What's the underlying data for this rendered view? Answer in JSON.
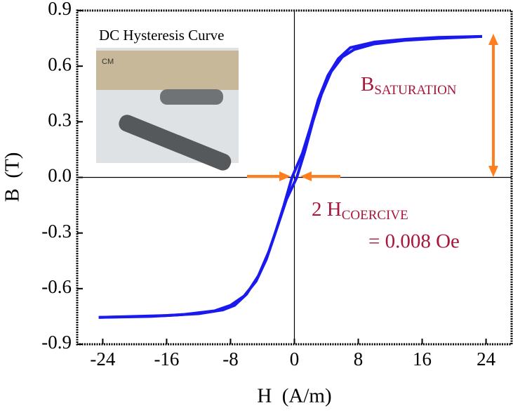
{
  "chart_data": {
    "type": "line",
    "xlabel": "H  (A/m)",
    "ylabel": "B  (T)",
    "xlim": [
      -27.2,
      27.2
    ],
    "ylim": [
      -0.9,
      0.9
    ],
    "xticks": [
      -24,
      -16,
      -8,
      0,
      8,
      16,
      24
    ],
    "yticks": [
      -0.9,
      -0.6,
      -0.3,
      {
        "value": 0,
        "label": "0.0"
      },
      0.3,
      0.6,
      0.9
    ],
    "series": [
      {
        "color": "#1a1aee",
        "x": [
          -24.5,
          -20,
          -16,
          -12,
          -9,
          -7.5,
          -6,
          -4.5,
          -3.2,
          -2,
          -1,
          0.3,
          1.3,
          2.3,
          3.4,
          4.6,
          6,
          7.5,
          10,
          14,
          18,
          23.5
        ],
        "values": [
          -0.755,
          -0.75,
          -0.745,
          -0.735,
          -0.715,
          -0.69,
          -0.63,
          -0.53,
          -0.4,
          -0.25,
          -0.12,
          0,
          0.14,
          0.3,
          0.45,
          0.57,
          0.65,
          0.69,
          0.72,
          0.74,
          0.75,
          0.76
        ]
      },
      {
        "color": "#1a1aee",
        "x": [
          23.5,
          18,
          14,
          10,
          7,
          5.5,
          4.2,
          3,
          2,
          1,
          -0.3,
          -1.3,
          -2.4,
          -3.5,
          -4.8,
          -6.3,
          -8,
          -10,
          -14,
          -18,
          -24.5
        ],
        "values": [
          0.76,
          0.755,
          0.745,
          0.73,
          0.7,
          0.64,
          0.55,
          0.42,
          0.27,
          0.13,
          0,
          -0.15,
          -0.3,
          -0.44,
          -0.56,
          -0.64,
          -0.69,
          -0.72,
          -0.74,
          -0.75,
          -0.755
        ]
      }
    ],
    "annotations": [
      {
        "text": "DC Hysteresis Curve"
      },
      {
        "text": "B",
        "sub": "SATURATION"
      },
      {
        "text": "2 H",
        "sub": "COERCIVE"
      },
      {
        "text": "=  0.008 Oe"
      }
    ]
  }
}
